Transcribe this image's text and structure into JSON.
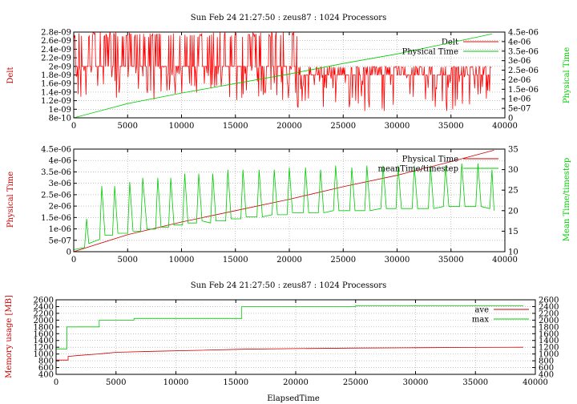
{
  "chart_data": [
    {
      "type": "line",
      "title": "Sun Feb 24 21:27:50 : zeus87 : 1024 Processors",
      "ylabel": "Delt",
      "y2label": "Physical Time",
      "xlim": [
        0,
        40000
      ],
      "ylim": [
        8e-10,
        2.8e-09
      ],
      "y2lim": [
        0,
        4.5e-06
      ],
      "xticks": [
        "0",
        "5000",
        "10000",
        "15000",
        "20000",
        "25000",
        "30000",
        "35000",
        "40000"
      ],
      "yticks": [
        "8e-10",
        "1e-09",
        "1.2e-09",
        "1.4e-09",
        "1.6e-09",
        "1.8e-09",
        "2e-09",
        "2.2e-09",
        "2.4e-09",
        "2.6e-09",
        "2.8e-09"
      ],
      "y2ticks": [
        "0",
        "5e-07",
        "1e-06",
        "1.5e-06",
        "2e-06",
        "2.5e-06",
        "3e-06",
        "3.5e-06",
        "4e-06",
        "4.5e-06"
      ],
      "grid": true,
      "legend_position": "top-right",
      "series": [
        {
          "name": "Delt",
          "axis": "y",
          "color": "#ff0000",
          "segments": [
            {
              "x_start": 0,
              "x_end": 20700,
              "mid": 2e-09,
              "low": 1.2e-09,
              "high": 2.8e-09
            },
            {
              "x_start": 20700,
              "x_end": 38800,
              "mid": 1.8e-09,
              "low": 9.5e-10,
              "high": 2e-09
            }
          ],
          "note_x_step": 60
        },
        {
          "name": "Physical Time",
          "axis": "y2",
          "color": "#00cc00",
          "x": [
            0,
            5000,
            10000,
            15000,
            20000,
            25000,
            30000,
            35000,
            38800
          ],
          "values": [
            0,
            7.5e-07,
            1.3e-06,
            1.8e-06,
            2.3e-06,
            2.85e-06,
            3.35e-06,
            3.95e-06,
            4.4e-06
          ]
        }
      ]
    },
    {
      "type": "line",
      "ylabel": "Physical Time",
      "y2label": "Mean Time/timestep",
      "xlim": [
        0,
        40000
      ],
      "ylim": [
        0,
        4.5e-06
      ],
      "y2lim": [
        10,
        35
      ],
      "xticks": [
        "0",
        "5000",
        "10000",
        "15000",
        "20000",
        "25000",
        "30000",
        "35000",
        "40000"
      ],
      "yticks": [
        "0",
        "5e-07",
        "1e-06",
        "1.5e-06",
        "2e-06",
        "2.5e-06",
        "3e-06",
        "3.5e-06",
        "4e-06",
        "4.5e-06"
      ],
      "y2ticks": [
        "10",
        "15",
        "20",
        "25",
        "30",
        "35"
      ],
      "grid": true,
      "legend_position": "top-right",
      "series": [
        {
          "name": "Physical Time",
          "axis": "y",
          "color": "#cc0000",
          "x": [
            0,
            5000,
            10000,
            15000,
            20000,
            25000,
            30000,
            35000,
            39000
          ],
          "values": [
            0,
            7.5e-07,
            1.3e-06,
            1.8e-06,
            2.3e-06,
            2.85e-06,
            3.35e-06,
            3.95e-06,
            4.45e-06
          ]
        },
        {
          "name": "meanTime/timestep",
          "axis": "y2",
          "color": "#00cc00",
          "x": [
            0,
            1000,
            1200,
            1400,
            2400,
            2600,
            2900,
            3600,
            3800,
            4100,
            5000,
            5200,
            5500,
            6200,
            6400,
            6800,
            7600,
            7800,
            8100,
            8800,
            9000,
            9300,
            10100,
            10300,
            10600,
            11400,
            11600,
            11900,
            12700,
            12900,
            13200,
            14100,
            14300,
            14600,
            15500,
            15700,
            16000,
            17000,
            17200,
            17500,
            18400,
            18600,
            18900,
            19800,
            20000,
            20300,
            21300,
            21500,
            21800,
            22700,
            22900,
            23200,
            24100,
            24300,
            24600,
            25600,
            25800,
            26100,
            27000,
            27200,
            27500,
            28500,
            28700,
            29000,
            29900,
            30100,
            30400,
            31400,
            31600,
            31900,
            32900,
            33100,
            33400,
            34300,
            34500,
            34800,
            35800,
            36000,
            36300,
            37300,
            37500,
            37800,
            38600,
            38800,
            39000
          ],
          "values": [
            10.5,
            11,
            18,
            12,
            13,
            26,
            14,
            14,
            26,
            14.5,
            14.5,
            27,
            15,
            15,
            28,
            15.5,
            15.5,
            28,
            16,
            16,
            28,
            16.5,
            16.5,
            29,
            17,
            17,
            29,
            17.5,
            17,
            29,
            17.5,
            17.5,
            30,
            18,
            18,
            30,
            18.5,
            18.5,
            30,
            18.5,
            19,
            30,
            19,
            19,
            30.5,
            19.5,
            19.5,
            30.5,
            19.5,
            19.5,
            30,
            19.5,
            20,
            31,
            20,
            20,
            30.5,
            20,
            20,
            31,
            20,
            20.5,
            31,
            20.5,
            20.5,
            31,
            20.5,
            20.5,
            31,
            20.5,
            20.5,
            31,
            20.5,
            21,
            31,
            21,
            21,
            31.5,
            21,
            21,
            31.5,
            21,
            20.5,
            30,
            20
          ]
        }
      ]
    },
    {
      "type": "line",
      "title": "Sun Feb 24 21:27:50 : zeus87 : 1024 Processors",
      "xlabel": "ElapsedTime",
      "ylabel": "Memory usage [MB]",
      "xlim": [
        0,
        40000
      ],
      "ylim": [
        400,
        2600
      ],
      "y2lim": [
        400,
        2600
      ],
      "xticks": [
        "0",
        "5000",
        "10000",
        "15000",
        "20000",
        "25000",
        "30000",
        "35000",
        "40000"
      ],
      "yticks": [
        "400",
        "600",
        "800",
        "1000",
        "1200",
        "1400",
        "1600",
        "1800",
        "2000",
        "2200",
        "2400",
        "2600"
      ],
      "y2ticks": [
        "400",
        "600",
        "800",
        "1000",
        "1200",
        "1400",
        "1600",
        "1800",
        "2000",
        "2200",
        "2400",
        "2600"
      ],
      "grid": true,
      "legend_position": "top-right",
      "series": [
        {
          "name": "ave",
          "color": "#cc0000",
          "x": [
            0,
            1000,
            1000,
            2000,
            3500,
            5000,
            8000,
            12000,
            15500,
            20000,
            25000,
            30000,
            35000,
            39000
          ],
          "values": [
            820,
            820,
            930,
            960,
            1000,
            1050,
            1080,
            1110,
            1140,
            1160,
            1175,
            1185,
            1195,
            1200
          ]
        },
        {
          "name": "max",
          "color": "#00cc00",
          "x": [
            0,
            900,
            900,
            3600,
            3600,
            6500,
            6500,
            15500,
            15500,
            25000,
            25000,
            39000
          ],
          "values": [
            1150,
            1150,
            1800,
            1800,
            2000,
            2000,
            2050,
            2050,
            2400,
            2400,
            2420,
            2420
          ]
        }
      ]
    }
  ]
}
